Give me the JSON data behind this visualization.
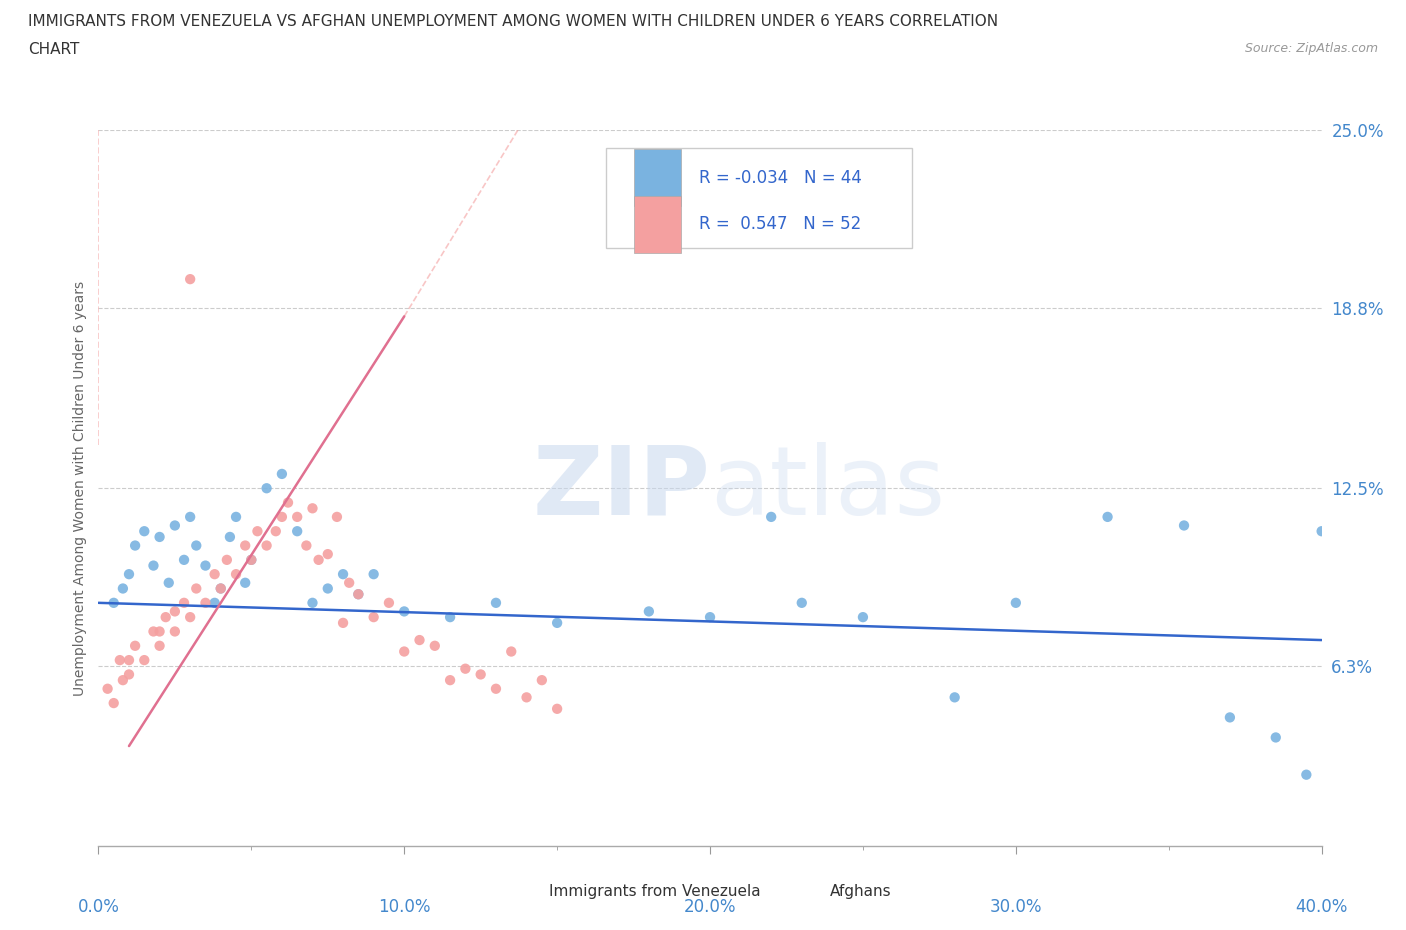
{
  "title_line1": "IMMIGRANTS FROM VENEZUELA VS AFGHAN UNEMPLOYMENT AMONG WOMEN WITH CHILDREN UNDER 6 YEARS CORRELATION",
  "title_line2": "CHART",
  "source_text": "Source: ZipAtlas.com",
  "watermark_zip": "ZIP",
  "watermark_atlas": "atlas",
  "ylabel": "Unemployment Among Women with Children Under 6 years",
  "xlim": [
    0.0,
    40.0
  ],
  "ylim": [
    0.0,
    25.0
  ],
  "xticks": [
    0.0,
    5.0,
    10.0,
    15.0,
    20.0,
    25.0,
    30.0,
    35.0,
    40.0
  ],
  "xtick_labels_major": [
    "0.0%",
    "10.0%",
    "20.0%",
    "30.0%",
    "40.0%"
  ],
  "xticks_major": [
    0.0,
    10.0,
    20.0,
    30.0,
    40.0
  ],
  "yticks": [
    6.3,
    12.5,
    18.8,
    25.0
  ],
  "ytick_labels": [
    "6.3%",
    "12.5%",
    "18.8%",
    "25.0%"
  ],
  "grid_color": "#cccccc",
  "background_color": "#ffffff",
  "blue_color": "#7ab3e0",
  "pink_color": "#f4a0a0",
  "blue_line_color": "#3366cc",
  "pink_line_color": "#e07090",
  "legend_R_color": "#3366cc",
  "title_color": "#333333",
  "axis_label_color": "#666666",
  "tick_color": "#4488cc",
  "R_blue": -0.034,
  "N_blue": 44,
  "R_pink": 0.547,
  "N_pink": 52,
  "blue_x": [
    0.5,
    0.8,
    1.0,
    1.2,
    1.5,
    1.8,
    2.0,
    2.3,
    2.5,
    2.8,
    3.0,
    3.2,
    3.5,
    3.8,
    4.0,
    4.3,
    4.5,
    4.8,
    5.0,
    5.5,
    6.0,
    6.5,
    7.0,
    7.5,
    8.0,
    8.5,
    9.0,
    10.0,
    11.5,
    13.0,
    15.0,
    18.0,
    20.0,
    22.0,
    23.0,
    25.0,
    28.0,
    30.0,
    33.0,
    35.5,
    37.0,
    38.5,
    39.5,
    40.0
  ],
  "blue_y": [
    8.5,
    9.0,
    9.5,
    10.5,
    11.0,
    9.8,
    10.8,
    9.2,
    11.2,
    10.0,
    11.5,
    10.5,
    9.8,
    8.5,
    9.0,
    10.8,
    11.5,
    9.2,
    10.0,
    12.5,
    13.0,
    11.0,
    8.5,
    9.0,
    9.5,
    8.8,
    9.5,
    8.2,
    8.0,
    8.5,
    7.8,
    8.2,
    8.0,
    11.5,
    8.5,
    8.0,
    5.2,
    8.5,
    11.5,
    11.2,
    4.5,
    3.8,
    2.5,
    11.0
  ],
  "pink_x": [
    0.3,
    0.5,
    0.7,
    0.8,
    1.0,
    1.0,
    1.2,
    1.5,
    1.8,
    2.0,
    2.0,
    2.2,
    2.5,
    2.5,
    2.8,
    3.0,
    3.2,
    3.5,
    3.8,
    4.0,
    4.2,
    4.5,
    4.8,
    5.0,
    5.2,
    5.5,
    5.8,
    6.0,
    6.2,
    6.5,
    6.8,
    7.0,
    7.2,
    7.5,
    7.8,
    8.0,
    8.2,
    8.5,
    9.0,
    9.5,
    10.0,
    10.5,
    11.0,
    11.5,
    12.0,
    12.5,
    13.0,
    13.5,
    14.0,
    14.5,
    15.0,
    3.0
  ],
  "pink_y": [
    5.5,
    5.0,
    6.5,
    5.8,
    6.0,
    6.5,
    7.0,
    6.5,
    7.5,
    7.0,
    7.5,
    8.0,
    7.5,
    8.2,
    8.5,
    8.0,
    9.0,
    8.5,
    9.5,
    9.0,
    10.0,
    9.5,
    10.5,
    10.0,
    11.0,
    10.5,
    11.0,
    11.5,
    12.0,
    11.5,
    10.5,
    11.8,
    10.0,
    10.2,
    11.5,
    7.8,
    9.2,
    8.8,
    8.0,
    8.5,
    6.8,
    7.2,
    7.0,
    5.8,
    6.2,
    6.0,
    5.5,
    6.8,
    5.2,
    5.8,
    4.8,
    19.8
  ],
  "blue_trend": [
    0.0,
    40.0,
    8.5,
    7.2
  ],
  "pink_trend_solid": [
    1.0,
    10.0,
    3.5,
    18.5
  ],
  "pink_trend_dashed": [
    0.0,
    14.0,
    0.0,
    25.0
  ]
}
